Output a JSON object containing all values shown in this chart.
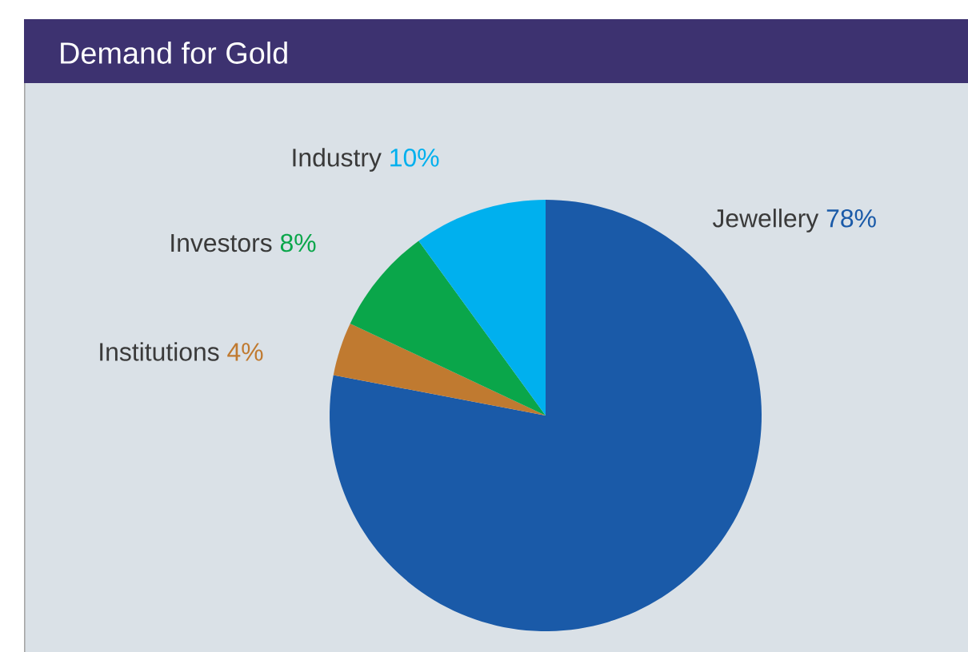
{
  "chart_data": {
    "type": "pie",
    "title": "Demand for Gold",
    "categories": [
      "Jewellery",
      "Institutions",
      "Investors",
      "Industry"
    ],
    "values": [
      78,
      4,
      8,
      10
    ],
    "value_labels": [
      "78%",
      "4%",
      "8%",
      "10%"
    ],
    "colors": [
      "#1a5aa8",
      "#c07a30",
      "#0aa64a",
      "#00b0ee"
    ]
  }
}
